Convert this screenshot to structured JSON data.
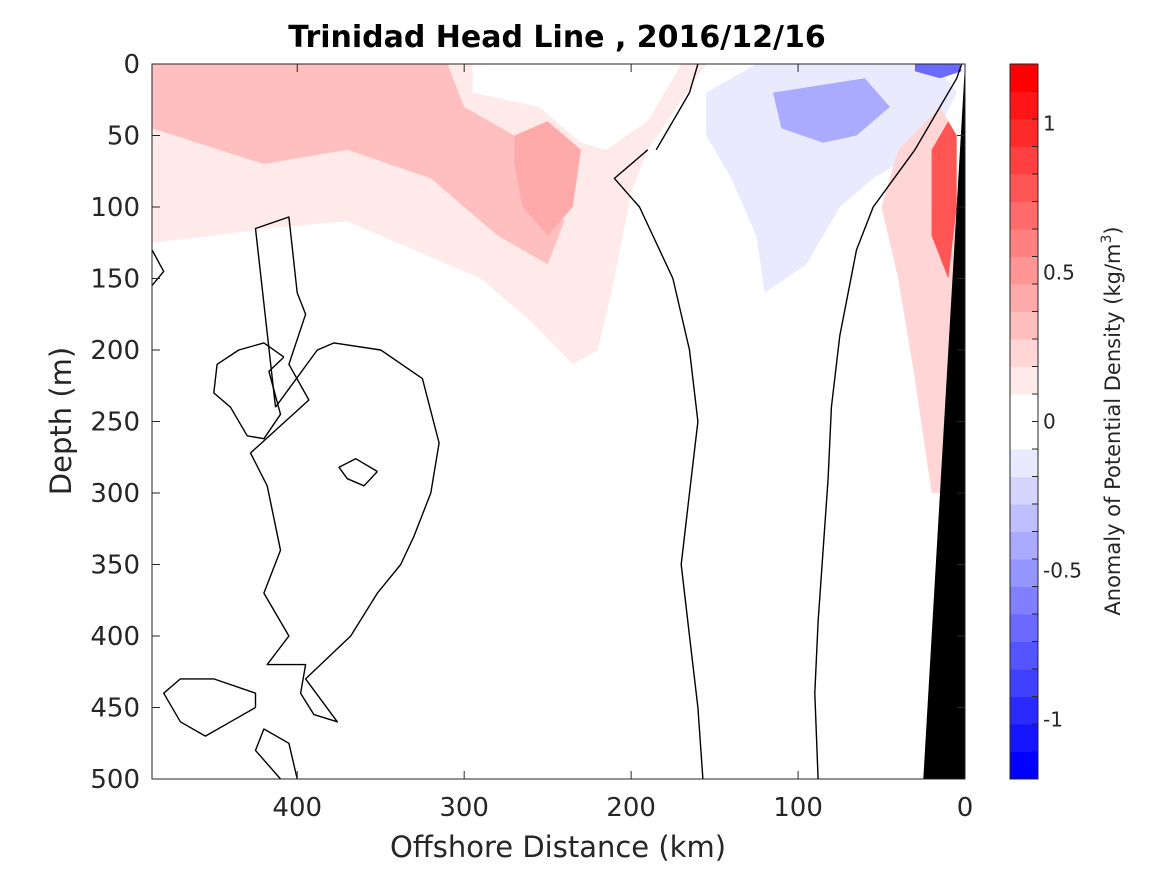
{
  "chart_data": {
    "type": "heatmap",
    "title": "Trinidad Head Line , 2016/12/16",
    "xlabel": "Offshore Distance (km)",
    "ylabel": "Depth (m)",
    "xlim": [
      487,
      0
    ],
    "ylim": [
      0,
      500
    ],
    "x_reversed": true,
    "y_reversed": true,
    "xticks": [
      400,
      300,
      200,
      100,
      0
    ],
    "yticks": [
      0,
      50,
      100,
      150,
      200,
      250,
      300,
      350,
      400,
      450,
      500
    ],
    "xtick_labels": [
      "400",
      "300",
      "200",
      "100",
      "0"
    ],
    "ytick_labels": [
      "0",
      "50",
      "100",
      "150",
      "200",
      "250",
      "300",
      "350",
      "400",
      "450",
      "500"
    ],
    "colorbar": {
      "label": "Anomaly of Potential Density (kg/m",
      "label_superscript": "3",
      "label_suffix": ")",
      "range": [
        -1.2,
        1.2
      ],
      "step": 0.1,
      "ticks": [
        -1,
        -0.5,
        0,
        0.5,
        1
      ],
      "tick_labels": [
        "-1",
        "-0.5",
        "0",
        "0.5",
        "1"
      ],
      "colors": [
        "#0000ff",
        "#1515ff",
        "#2a2aff",
        "#4040ff",
        "#5555ff",
        "#6a6aff",
        "#8080ff",
        "#9595ff",
        "#aaaaff",
        "#bfbfff",
        "#d5d5ff",
        "#eaeaff",
        "#ffffff",
        "#ffffff",
        "#ffeaea",
        "#ffd5d5",
        "#ffbfbf",
        "#ffaaaa",
        "#ff9595",
        "#ff8080",
        "#ff6a6a",
        "#ff5555",
        "#ff4040",
        "#ff2a2a",
        "#ff1515",
        "#ff0000"
      ]
    },
    "regions": [
      {
        "name": "surface-positive-anomaly-band",
        "value": 0.15,
        "polygon": [
          [
            487,
            0
          ],
          [
            295,
            0
          ],
          [
            295,
            20
          ],
          [
            255,
            30
          ],
          [
            230,
            55
          ],
          [
            215,
            60
          ],
          [
            190,
            40
          ],
          [
            170,
            0
          ],
          [
            155,
            0
          ],
          [
            190,
            60
          ],
          [
            200,
            90
          ],
          [
            210,
            150
          ],
          [
            220,
            200
          ],
          [
            235,
            210
          ],
          [
            260,
            180
          ],
          [
            290,
            150
          ],
          [
            330,
            130
          ],
          [
            370,
            110
          ],
          [
            420,
            115
          ],
          [
            450,
            120
          ],
          [
            487,
            125
          ]
        ]
      },
      {
        "name": "positive-anomaly-offshore-core",
        "value": 0.3,
        "polygon": [
          [
            487,
            0
          ],
          [
            310,
            0
          ],
          [
            300,
            30
          ],
          [
            270,
            50
          ],
          [
            240,
            110
          ],
          [
            250,
            140
          ],
          [
            280,
            120
          ],
          [
            320,
            80
          ],
          [
            370,
            60
          ],
          [
            420,
            70
          ],
          [
            460,
            55
          ],
          [
            487,
            45
          ]
        ]
      },
      {
        "name": "positive-anomaly-mid-core",
        "value": 0.4,
        "polygon": [
          [
            270,
            50
          ],
          [
            250,
            40
          ],
          [
            230,
            60
          ],
          [
            235,
            100
          ],
          [
            250,
            120
          ],
          [
            265,
            100
          ],
          [
            270,
            70
          ]
        ]
      },
      {
        "name": "negative-anomaly-shelf-break",
        "value": -0.15,
        "polygon": [
          [
            125,
            0
          ],
          [
            18,
            0
          ],
          [
            5,
            20
          ],
          [
            20,
            55
          ],
          [
            55,
            80
          ],
          [
            75,
            100
          ],
          [
            95,
            140
          ],
          [
            120,
            160
          ],
          [
            125,
            120
          ],
          [
            140,
            80
          ],
          [
            155,
            50
          ],
          [
            155,
            20
          ]
        ]
      },
      {
        "name": "negative-anomaly-core",
        "value": -0.4,
        "polygon": [
          [
            115,
            20
          ],
          [
            60,
            10
          ],
          [
            45,
            30
          ],
          [
            65,
            50
          ],
          [
            85,
            55
          ],
          [
            110,
            45
          ]
        ]
      },
      {
        "name": "negative-anomaly-surface-nearshore",
        "value": -0.7,
        "polygon": [
          [
            30,
            0
          ],
          [
            3,
            0
          ],
          [
            2,
            5
          ],
          [
            15,
            10
          ],
          [
            30,
            5
          ]
        ]
      },
      {
        "name": "positive-anomaly-nearshore-slope",
        "value": 0.2,
        "polygon": [
          [
            15,
            30
          ],
          [
            40,
            60
          ],
          [
            50,
            100
          ],
          [
            40,
            150
          ],
          [
            30,
            220
          ],
          [
            20,
            300
          ],
          [
            10,
            300
          ],
          [
            5,
            200
          ],
          [
            5,
            100
          ],
          [
            10,
            40
          ]
        ]
      },
      {
        "name": "positive-anomaly-nearshore-core",
        "value": 0.8,
        "polygon": [
          [
            10,
            40
          ],
          [
            20,
            60
          ],
          [
            20,
            120
          ],
          [
            10,
            150
          ],
          [
            5,
            100
          ],
          [
            5,
            50
          ]
        ]
      }
    ],
    "zero_contours": [
      {
        "name": "zero-contour-offshore-large",
        "points": [
          [
            413,
            240
          ],
          [
            425,
            115
          ],
          [
            405,
            107
          ],
          [
            400,
            160
          ],
          [
            395,
            175
          ],
          [
            405,
            210
          ],
          [
            393,
            235
          ],
          [
            428,
            272
          ],
          [
            418,
            295
          ],
          [
            410,
            340
          ],
          [
            420,
            370
          ],
          [
            405,
            400
          ],
          [
            418,
            420
          ],
          [
            395,
            420
          ],
          [
            398,
            440
          ],
          [
            390,
            455
          ],
          [
            376,
            460
          ],
          [
            395,
            430
          ],
          [
            368,
            400
          ],
          [
            352,
            370
          ],
          [
            338,
            350
          ],
          [
            330,
            330
          ],
          [
            320,
            300
          ],
          [
            315,
            265
          ],
          [
            325,
            220
          ],
          [
            350,
            200
          ],
          [
            378,
            195
          ],
          [
            388,
            200
          ],
          [
            413,
            240
          ]
        ]
      },
      {
        "name": "zero-contour-offshore-island-a",
        "points": [
          [
            408,
            205
          ],
          [
            417,
            215
          ],
          [
            410,
            245
          ],
          [
            420,
            262
          ],
          [
            430,
            260
          ],
          [
            440,
            240
          ],
          [
            450,
            230
          ],
          [
            448,
            210
          ],
          [
            435,
            200
          ],
          [
            420,
            195
          ],
          [
            408,
            205
          ]
        ]
      },
      {
        "name": "zero-contour-offshore-island-b",
        "points": [
          [
            352,
            285
          ],
          [
            360,
            295
          ],
          [
            370,
            290
          ],
          [
            375,
            282
          ],
          [
            365,
            276
          ],
          [
            352,
            285
          ]
        ]
      },
      {
        "name": "zero-contour-mid-front",
        "points": [
          [
            185,
            60
          ],
          [
            175,
            40
          ],
          [
            165,
            20
          ],
          [
            160,
            0
          ]
        ]
      },
      {
        "name": "zero-contour-mid-vertical",
        "points": [
          [
            157,
            500
          ],
          [
            160,
            450
          ],
          [
            165,
            400
          ],
          [
            170,
            350
          ],
          [
            165,
            300
          ],
          [
            160,
            250
          ],
          [
            165,
            200
          ],
          [
            175,
            150
          ],
          [
            195,
            100
          ],
          [
            210,
            80
          ],
          [
            190,
            60
          ]
        ]
      },
      {
        "name": "zero-contour-inner-vertical",
        "points": [
          [
            88,
            500
          ],
          [
            90,
            440
          ],
          [
            88,
            390
          ],
          [
            85,
            340
          ],
          [
            82,
            290
          ],
          [
            80,
            240
          ],
          [
            75,
            190
          ],
          [
            65,
            130
          ],
          [
            55,
            100
          ],
          [
            30,
            60
          ],
          [
            15,
            30
          ],
          [
            5,
            10
          ],
          [
            2,
            0
          ]
        ]
      },
      {
        "name": "zero-contour-left-edge",
        "points": [
          [
            487,
            130
          ],
          [
            480,
            145
          ],
          [
            487,
            155
          ]
        ]
      },
      {
        "name": "zero-contour-bottom-island",
        "points": [
          [
            425,
            450
          ],
          [
            440,
            460
          ],
          [
            455,
            470
          ],
          [
            470,
            460
          ],
          [
            480,
            440
          ],
          [
            470,
            430
          ],
          [
            450,
            430
          ],
          [
            425,
            440
          ],
          [
            425,
            450
          ]
        ]
      },
      {
        "name": "zero-contour-bottom-stub",
        "points": [
          [
            410,
            500
          ],
          [
            425,
            480
          ],
          [
            420,
            465
          ],
          [
            405,
            475
          ],
          [
            400,
            500
          ]
        ]
      }
    ],
    "bathymetry": {
      "name": "shelf-bottom",
      "points": [
        [
          0,
          0
        ],
        [
          25,
          500
        ],
        [
          0,
          500
        ]
      ]
    }
  }
}
